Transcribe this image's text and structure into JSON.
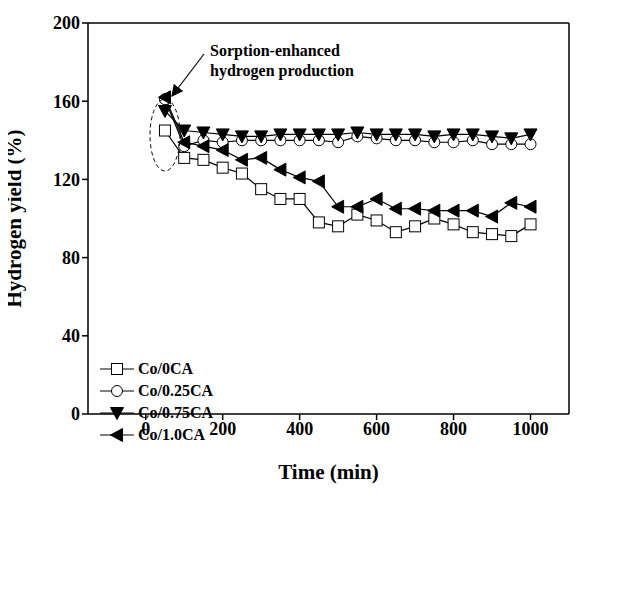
{
  "chart_data": {
    "type": "line",
    "annotations": [
      "Sorption-enhanced",
      "hydrogen production"
    ],
    "x_label": "Time (min)",
    "y_label": "Hydrogen yield (%)",
    "x": [
      50,
      100,
      150,
      200,
      250,
      300,
      350,
      400,
      450,
      500,
      550,
      600,
      650,
      700,
      750,
      800,
      850,
      900,
      950,
      1000
    ],
    "xlim": [
      -150,
      1100
    ],
    "xticks": [
      0,
      200,
      400,
      600,
      800,
      1000
    ],
    "ylim": [
      0,
      200
    ],
    "yticks": [
      0,
      40,
      80,
      120,
      160,
      200
    ],
    "legend": "lower left",
    "series": [
      {
        "name": "Co/0CA",
        "color": "#000000",
        "marker": "open-square",
        "values": [
          145,
          131,
          130,
          126,
          123,
          115,
          110,
          110,
          98,
          96,
          102,
          99,
          93,
          96,
          100,
          97,
          93,
          92,
          91,
          97
        ]
      },
      {
        "name": "Co/0.25CA",
        "color": "#000000",
        "marker": "open-circle",
        "values": [
          161,
          137,
          140,
          139,
          140,
          140,
          140,
          140,
          140,
          139,
          142,
          141,
          140,
          140,
          139,
          139,
          140,
          138,
          138,
          138
        ]
      },
      {
        "name": "Co/0.75CA",
        "color": "#000000",
        "marker": "triangle-down",
        "values": [
          155,
          145,
          144,
          143,
          142,
          142,
          143,
          143,
          143,
          143,
          144,
          143,
          143,
          143,
          142,
          143,
          143,
          142,
          141,
          143
        ]
      },
      {
        "name": "Co/1.0CA",
        "color": "#000000",
        "marker": "triangle-left",
        "values": [
          162,
          139,
          137,
          135,
          130,
          131,
          125,
          121,
          119,
          106,
          106,
          110,
          105,
          105,
          104,
          104,
          104,
          101,
          108,
          106
        ]
      }
    ]
  }
}
